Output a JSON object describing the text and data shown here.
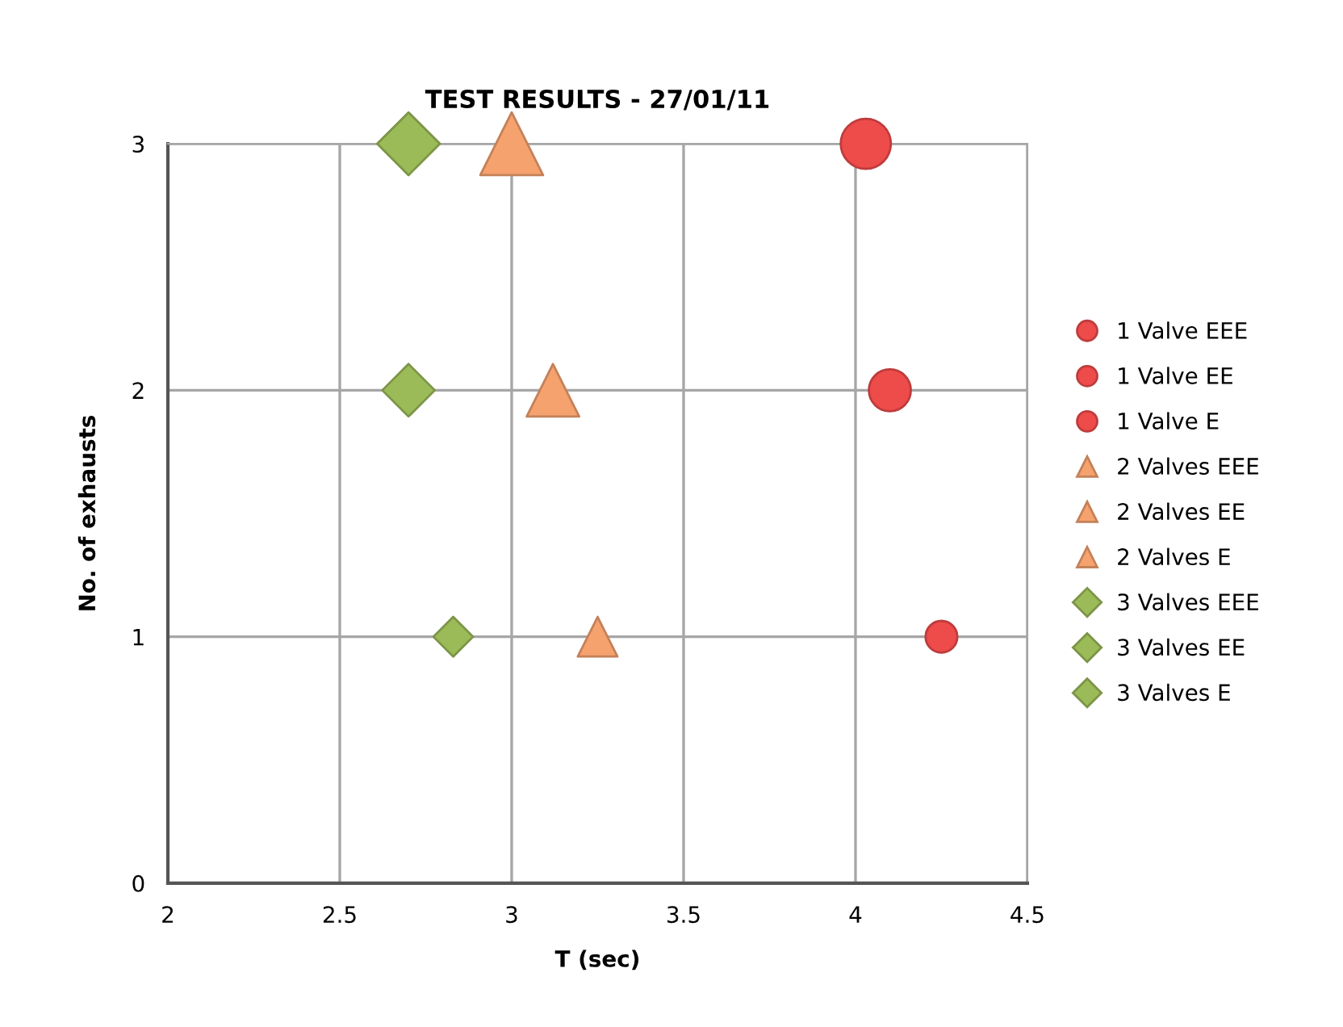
{
  "chart_data": {
    "type": "bubble",
    "title": "TEST RESULTS - 27/01/11",
    "xlabel": "T (sec)",
    "ylabel": "No. of exhausts",
    "xlim": [
      2,
      4.5
    ],
    "xticks": [
      2,
      2.5,
      3,
      3.5,
      4,
      4.5
    ],
    "ylim": [
      0,
      3
    ],
    "yticks": [
      0,
      1,
      2,
      3
    ],
    "grid": true,
    "legend": "right",
    "series": [
      {
        "name": "1 Valve EEE",
        "color": "#ee4b4b",
        "marker": "circle",
        "x": [
          4.03
        ],
        "values": [
          3
        ],
        "sizes": [
          1
        ]
      },
      {
        "name": "1 Valve EE",
        "color": "#ee4b4b",
        "marker": "circle",
        "x": [
          4.1
        ],
        "values": [
          2
        ],
        "sizes": [
          0.7
        ]
      },
      {
        "name": "1 Valve E",
        "color": "#ee4b4b",
        "marker": "circle",
        "x": [
          4.25
        ],
        "values": [
          1
        ],
        "sizes": [
          0.4
        ]
      },
      {
        "name": "2 Valves EEE",
        "color": "#f5a26f",
        "marker": "triangle",
        "x": [
          3.0
        ],
        "values": [
          3
        ],
        "sizes": [
          1
        ]
      },
      {
        "name": "2 Valves EE",
        "color": "#f5a26f",
        "marker": "triangle",
        "x": [
          3.12
        ],
        "values": [
          2
        ],
        "sizes": [
          0.7
        ]
      },
      {
        "name": "2 Valves E",
        "color": "#f5a26f",
        "marker": "triangle",
        "x": [
          3.25
        ],
        "values": [
          1
        ],
        "sizes": [
          0.4
        ]
      },
      {
        "name": "3 Valves EEE",
        "color": "#9bbb59",
        "marker": "diamond",
        "x": [
          2.7
        ],
        "values": [
          3
        ],
        "sizes": [
          1
        ]
      },
      {
        "name": "3 Valves EE",
        "color": "#9bbb59",
        "marker": "diamond",
        "x": [
          2.7
        ],
        "values": [
          2
        ],
        "sizes": [
          0.7
        ]
      },
      {
        "name": "3 Valves E",
        "color": "#9bbb59",
        "marker": "diamond",
        "x": [
          2.83
        ],
        "values": [
          1
        ],
        "sizes": [
          0.4
        ]
      }
    ]
  }
}
